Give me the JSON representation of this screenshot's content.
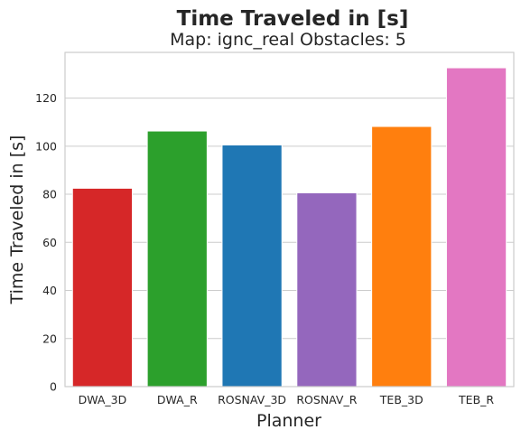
{
  "chart_data": {
    "type": "bar",
    "title": "Time Traveled in [s]",
    "subtitle": "Map: ignc_real Obstacles: 5",
    "xlabel": "Planner",
    "ylabel": "Time Traveled in [s]",
    "categories": [
      "DWA_3D",
      "DWA_R",
      "ROSNAV_3D",
      "ROSNAV_R",
      "TEB_3D",
      "TEB_R"
    ],
    "values": [
      82.5,
      106.3,
      100.5,
      80.6,
      108.2,
      132.6
    ],
    "colors": [
      "#d62728",
      "#2ca02c",
      "#1f77b4",
      "#9467bd",
      "#ff7f0e",
      "#e377c2"
    ],
    "ylim": [
      0,
      139
    ],
    "yticks": [
      0,
      20,
      40,
      60,
      80,
      100,
      120
    ],
    "grid": "horizontal",
    "legend": "none"
  }
}
